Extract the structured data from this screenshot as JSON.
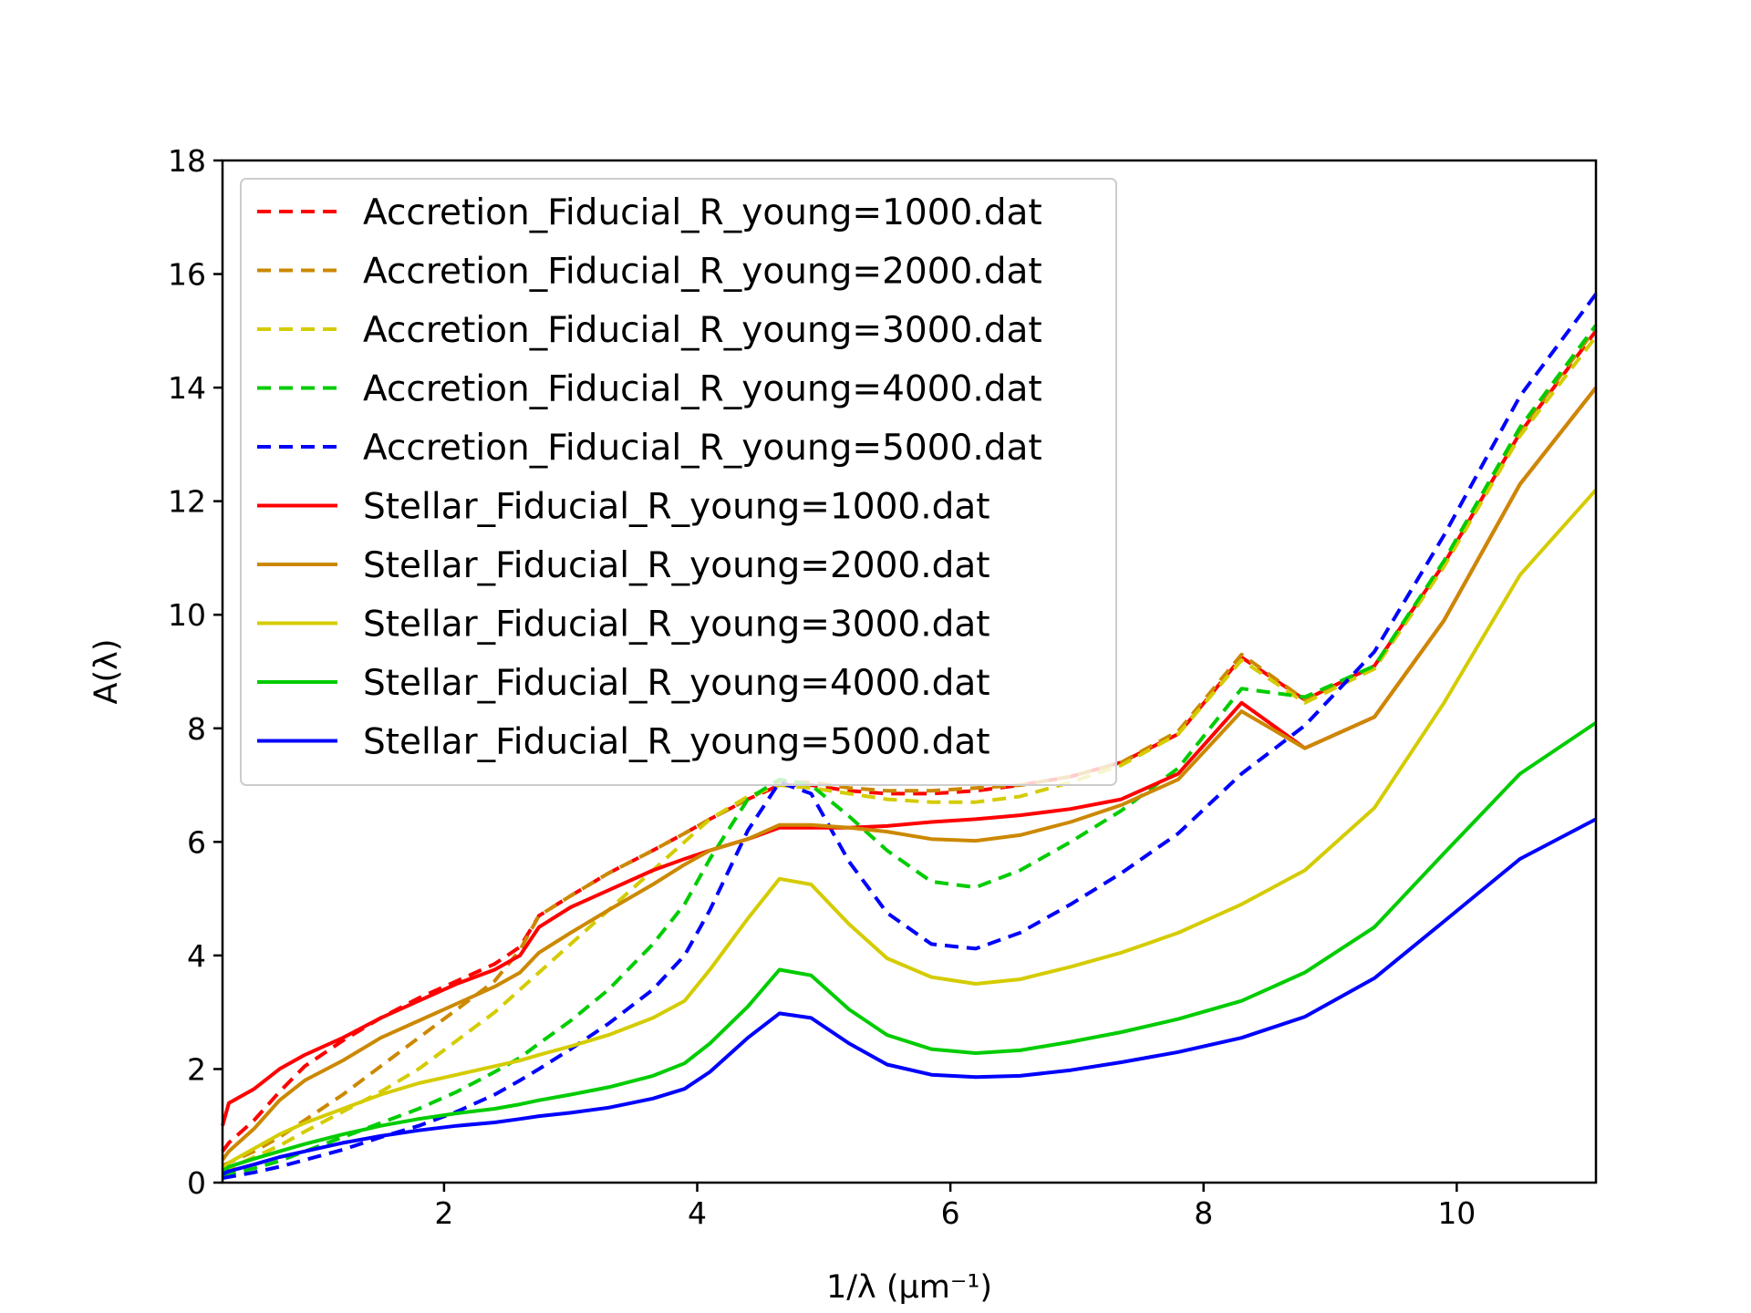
{
  "chart_data": {
    "type": "line",
    "title": "",
    "xlabel": "1/λ (μm⁻¹)",
    "ylabel": "A(λ)",
    "xlim": [
      0.25,
      11.1
    ],
    "ylim": [
      0,
      18
    ],
    "xticks": [
      "2",
      "4",
      "6",
      "8",
      "10"
    ],
    "yticks": [
      "0",
      "2",
      "4",
      "6",
      "8",
      "10",
      "12",
      "14",
      "16",
      "18"
    ],
    "grid": false,
    "legend_position": "top-left",
    "x": [
      0.25,
      0.3,
      0.5,
      0.7,
      0.9,
      1.2,
      1.5,
      1.8,
      2.1,
      2.4,
      2.6,
      2.75,
      3.0,
      3.3,
      3.65,
      3.9,
      4.1,
      4.4,
      4.65,
      4.9,
      5.2,
      5.5,
      5.85,
      6.2,
      6.55,
      6.95,
      7.35,
      7.8,
      8.3,
      8.8,
      9.35,
      9.9,
      10.5,
      11.1
    ],
    "series": [
      {
        "name": "Accretion_Fiducial_R_young=1000.dat",
        "color": "#ff0000",
        "dash": "dashed",
        "values": [
          0.55,
          0.7,
          1.1,
          1.6,
          2.05,
          2.5,
          2.9,
          3.25,
          3.55,
          3.85,
          4.15,
          4.7,
          5.05,
          5.45,
          5.85,
          6.15,
          6.4,
          6.75,
          7.0,
          7.0,
          6.9,
          6.85,
          6.85,
          6.9,
          7.0,
          7.15,
          7.4,
          7.9,
          9.25,
          8.5,
          9.1,
          10.9,
          13.2,
          15.0
        ]
      },
      {
        "name": "Accretion_Fiducial_R_young=2000.dat",
        "color": "#cc8800",
        "dash": "dashed",
        "values": [
          0.3,
          0.35,
          0.55,
          0.8,
          1.1,
          1.55,
          2.05,
          2.55,
          3.05,
          3.55,
          4.1,
          4.7,
          5.05,
          5.45,
          5.85,
          6.15,
          6.4,
          6.75,
          7.05,
          7.05,
          6.95,
          6.9,
          6.9,
          6.95,
          7.0,
          7.15,
          7.4,
          7.95,
          9.3,
          8.5,
          9.05,
          10.85,
          13.25,
          15.05
        ]
      },
      {
        "name": "Accretion_Fiducial_R_young=3000.dat",
        "color": "#d4cc00",
        "dash": "dashed",
        "values": [
          0.2,
          0.25,
          0.45,
          0.65,
          0.9,
          1.25,
          1.6,
          2.0,
          2.5,
          3.0,
          3.4,
          3.7,
          4.2,
          4.8,
          5.5,
          6.0,
          6.4,
          6.8,
          7.0,
          6.95,
          6.85,
          6.75,
          6.7,
          6.7,
          6.8,
          7.05,
          7.35,
          7.9,
          9.2,
          8.45,
          9.05,
          10.85,
          13.15,
          14.9
        ]
      },
      {
        "name": "Accretion_Fiducial_R_young=4000.dat",
        "color": "#00cc00",
        "dash": "dashed",
        "values": [
          0.12,
          0.15,
          0.25,
          0.38,
          0.55,
          0.8,
          1.05,
          1.3,
          1.6,
          1.95,
          2.2,
          2.45,
          2.85,
          3.4,
          4.2,
          4.9,
          5.7,
          6.75,
          7.1,
          7.0,
          6.45,
          5.85,
          5.3,
          5.2,
          5.5,
          6.0,
          6.55,
          7.3,
          8.7,
          8.55,
          9.1,
          10.95,
          13.3,
          15.1
        ]
      },
      {
        "name": "Accretion_Fiducial_R_young=5000.dat",
        "color": "#0000ff",
        "dash": "dashed",
        "values": [
          0.08,
          0.1,
          0.18,
          0.28,
          0.4,
          0.58,
          0.8,
          1.0,
          1.25,
          1.55,
          1.8,
          2.0,
          2.35,
          2.8,
          3.4,
          4.0,
          4.8,
          6.2,
          7.05,
          6.85,
          5.65,
          4.75,
          4.2,
          4.12,
          4.4,
          4.9,
          5.45,
          6.15,
          7.2,
          8.05,
          9.35,
          11.4,
          13.85,
          15.65
        ]
      },
      {
        "name": "Stellar_Fiducial_R_young=1000.dat",
        "color": "#ff0000",
        "dash": "solid",
        "values": [
          1.0,
          1.4,
          1.65,
          2.0,
          2.25,
          2.55,
          2.9,
          3.2,
          3.5,
          3.75,
          4.0,
          4.5,
          4.85,
          5.15,
          5.5,
          5.7,
          5.85,
          6.05,
          6.25,
          6.25,
          6.25,
          6.28,
          6.35,
          6.4,
          6.47,
          6.58,
          6.75,
          7.2,
          8.45,
          7.65,
          8.2,
          9.9,
          12.3,
          14.0
        ]
      },
      {
        "name": "Stellar_Fiducial_R_young=2000.dat",
        "color": "#cc8800",
        "dash": "solid",
        "values": [
          0.4,
          0.55,
          0.95,
          1.45,
          1.8,
          2.15,
          2.55,
          2.85,
          3.15,
          3.45,
          3.7,
          4.05,
          4.4,
          4.8,
          5.25,
          5.6,
          5.85,
          6.05,
          6.3,
          6.3,
          6.25,
          6.18,
          6.05,
          6.02,
          6.12,
          6.35,
          6.65,
          7.1,
          8.3,
          7.65,
          8.2,
          9.9,
          12.3,
          14.0
        ]
      },
      {
        "name": "Stellar_Fiducial_R_young=3000.dat",
        "color": "#d4cc00",
        "dash": "solid",
        "values": [
          0.25,
          0.35,
          0.6,
          0.85,
          1.05,
          1.3,
          1.55,
          1.75,
          1.9,
          2.05,
          2.15,
          2.25,
          2.4,
          2.6,
          2.9,
          3.2,
          3.75,
          4.65,
          5.35,
          5.25,
          4.55,
          3.95,
          3.62,
          3.5,
          3.58,
          3.8,
          4.05,
          4.4,
          4.9,
          5.5,
          6.6,
          8.45,
          10.7,
          12.2
        ]
      },
      {
        "name": "Stellar_Fiducial_R_young=4000.dat",
        "color": "#00cc00",
        "dash": "solid",
        "values": [
          0.2,
          0.28,
          0.42,
          0.55,
          0.68,
          0.85,
          1.0,
          1.12,
          1.22,
          1.3,
          1.38,
          1.45,
          1.55,
          1.68,
          1.88,
          2.1,
          2.45,
          3.1,
          3.75,
          3.65,
          3.05,
          2.6,
          2.35,
          2.28,
          2.33,
          2.48,
          2.65,
          2.88,
          3.2,
          3.7,
          4.5,
          5.8,
          7.2,
          8.1
        ]
      },
      {
        "name": "Stellar_Fiducial_R_young=5000.dat",
        "color": "#0000ff",
        "dash": "solid",
        "values": [
          0.15,
          0.2,
          0.32,
          0.45,
          0.55,
          0.7,
          0.82,
          0.92,
          1.0,
          1.06,
          1.12,
          1.17,
          1.23,
          1.32,
          1.48,
          1.65,
          1.95,
          2.55,
          2.98,
          2.9,
          2.45,
          2.08,
          1.9,
          1.86,
          1.88,
          1.98,
          2.12,
          2.3,
          2.55,
          2.92,
          3.6,
          4.6,
          5.7,
          6.4
        ]
      }
    ]
  }
}
